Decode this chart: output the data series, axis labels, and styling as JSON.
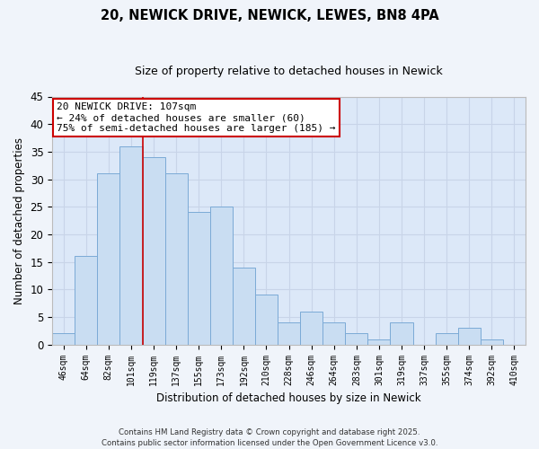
{
  "title": "20, NEWICK DRIVE, NEWICK, LEWES, BN8 4PA",
  "subtitle": "Size of property relative to detached houses in Newick",
  "xlabel": "Distribution of detached houses by size in Newick",
  "ylabel": "Number of detached properties",
  "bar_labels": [
    "46sqm",
    "64sqm",
    "82sqm",
    "101sqm",
    "119sqm",
    "137sqm",
    "155sqm",
    "173sqm",
    "192sqm",
    "210sqm",
    "228sqm",
    "246sqm",
    "264sqm",
    "283sqm",
    "301sqm",
    "319sqm",
    "337sqm",
    "355sqm",
    "374sqm",
    "392sqm",
    "410sqm"
  ],
  "bar_values": [
    2,
    16,
    31,
    36,
    34,
    31,
    24,
    25,
    14,
    9,
    4,
    6,
    4,
    2,
    1,
    4,
    0,
    2,
    3,
    1,
    0
  ],
  "bar_color": "#c9ddf2",
  "bar_edge_color": "#7baad6",
  "vline_x": 3.5,
  "vline_color": "#cc0000",
  "ylim": [
    0,
    45
  ],
  "yticks": [
    0,
    5,
    10,
    15,
    20,
    25,
    30,
    35,
    40,
    45
  ],
  "annotation_title": "20 NEWICK DRIVE: 107sqm",
  "annotation_line1": "← 24% of detached houses are smaller (60)",
  "annotation_line2": "75% of semi-detached houses are larger (185) →",
  "annotation_box_color": "#ffffff",
  "annotation_box_edge": "#cc0000",
  "grid_color": "#c8d4e8",
  "bg_color": "#dce8f8",
  "fig_bg_color": "#f0f4fa",
  "footer_line1": "Contains HM Land Registry data © Crown copyright and database right 2025.",
  "footer_line2": "Contains public sector information licensed under the Open Government Licence v3.0."
}
